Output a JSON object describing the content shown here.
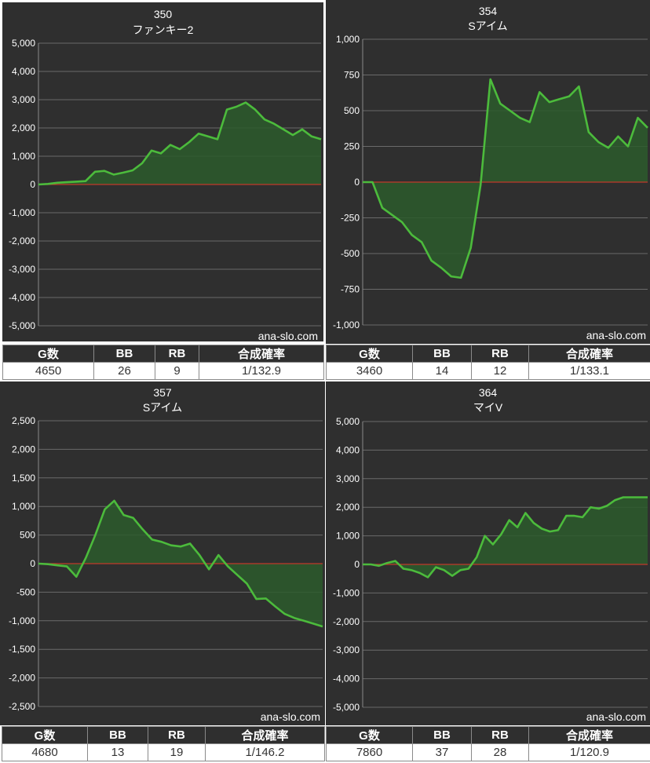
{
  "watermark": "ana-slo.com",
  "stats_headers": [
    "G数",
    "BB",
    "RB",
    "合成確率"
  ],
  "colors": {
    "panel_bg": "#2f2f2f",
    "line": "#4cbb3c",
    "fill": "#2c5a2c",
    "zero_line": "#c0392b",
    "grid": "#6a6a6a"
  },
  "panels": [
    {
      "machine_no": "350",
      "model": "ファンキー2",
      "stats": {
        "g": "4650",
        "bb": "26",
        "rb": "9",
        "prob": "1/132.9"
      },
      "chart_data": {
        "type": "area",
        "ylim": [
          -5000,
          5000
        ],
        "yticks": [
          "5,000",
          "4,000",
          "3,000",
          "2,000",
          "1,000",
          "0",
          "-1,000",
          "-2,000",
          "-3,000",
          "-4,000",
          "-5,000"
        ],
        "grid": true,
        "x": [
          0,
          20,
          40,
          60,
          80,
          100,
          120,
          140,
          160,
          180,
          200,
          220,
          240,
          260,
          280,
          300,
          320,
          340,
          360,
          380,
          400,
          420,
          440,
          460,
          480,
          500,
          520,
          540,
          560,
          580,
          600
        ],
        "values": [
          0,
          20,
          60,
          80,
          100,
          120,
          450,
          480,
          350,
          420,
          500,
          750,
          1200,
          1100,
          1400,
          1250,
          1500,
          1800,
          1700,
          1600,
          2650,
          2750,
          2900,
          2650,
          2300,
          2150,
          1950,
          1750,
          1950,
          1700,
          1600
        ]
      }
    },
    {
      "machine_no": "354",
      "model": "Sアイム",
      "stats": {
        "g": "3460",
        "bb": "14",
        "rb": "12",
        "prob": "1/133.1"
      },
      "chart_data": {
        "type": "area",
        "ylim": [
          -1000,
          1000
        ],
        "yticks": [
          "1,000",
          "750",
          "500",
          "250",
          "0",
          "-250",
          "-500",
          "-750",
          "-1,000"
        ],
        "grid": true,
        "x": [
          0,
          6,
          12,
          18,
          24,
          30,
          36,
          42,
          48,
          54,
          60,
          66,
          72,
          78,
          84,
          90,
          96,
          102,
          108,
          114,
          120,
          126,
          132,
          138,
          144,
          150,
          156,
          162,
          168,
          174
        ],
        "values": [
          0,
          0,
          -180,
          -230,
          -280,
          -370,
          -420,
          -550,
          -600,
          -660,
          -670,
          -460,
          -20,
          720,
          550,
          500,
          450,
          420,
          630,
          560,
          580,
          600,
          670,
          350,
          280,
          240,
          320,
          250,
          450,
          380
        ]
      }
    },
    {
      "machine_no": "357",
      "model": "Sアイム",
      "stats": {
        "g": "4680",
        "bb": "13",
        "rb": "19",
        "prob": "1/146.2"
      },
      "chart_data": {
        "type": "area",
        "ylim": [
          -2500,
          2500
        ],
        "yticks": [
          "2,500",
          "2,000",
          "1,500",
          "1,000",
          "500",
          "0",
          "-500",
          "-1,000",
          "-1,500",
          "-2,000",
          "-2,500"
        ],
        "grid": true,
        "x": [
          0,
          15,
          30,
          45,
          60,
          75,
          90,
          105,
          120,
          135,
          150,
          165,
          180,
          195,
          210,
          225,
          240,
          255,
          270,
          285,
          300,
          315,
          330,
          345,
          360,
          375,
          390,
          405,
          420,
          435,
          450
        ],
        "values": [
          0,
          -10,
          -30,
          -50,
          -230,
          100,
          500,
          950,
          1100,
          850,
          800,
          600,
          420,
          380,
          320,
          300,
          350,
          150,
          -100,
          150,
          -50,
          -200,
          -350,
          -620,
          -610,
          -750,
          -880,
          -950,
          -1000,
          -1050,
          -1100
        ]
      }
    },
    {
      "machine_no": "364",
      "model": "マイV",
      "stats": {
        "g": "7860",
        "bb": "37",
        "rb": "28",
        "prob": "1/120.9"
      },
      "chart_data": {
        "type": "area",
        "ylim": [
          -5000,
          5000
        ],
        "yticks": [
          "5,000",
          "4,000",
          "3,000",
          "2,000",
          "1,000",
          "0",
          "-1,000",
          "-2,000",
          "-3,000",
          "-4,000",
          "-5,000"
        ],
        "grid": true,
        "x": [
          0,
          10,
          20,
          30,
          40,
          50,
          60,
          70,
          80,
          90,
          100,
          110,
          120,
          130,
          140,
          150,
          160,
          170,
          180,
          190,
          200,
          210,
          220,
          230,
          240,
          250,
          260,
          270,
          280,
          290,
          300,
          310,
          320,
          330,
          340,
          350
        ],
        "values": [
          0,
          0,
          -50,
          50,
          120,
          -150,
          -200,
          -300,
          -450,
          -100,
          -200,
          -400,
          -200,
          -150,
          250,
          1000,
          700,
          1050,
          1550,
          1300,
          1800,
          1450,
          1250,
          1150,
          1200,
          1700,
          1700,
          1650,
          2000,
          1950,
          2050,
          2250,
          2350,
          2350,
          2350,
          2350
        ]
      }
    }
  ]
}
